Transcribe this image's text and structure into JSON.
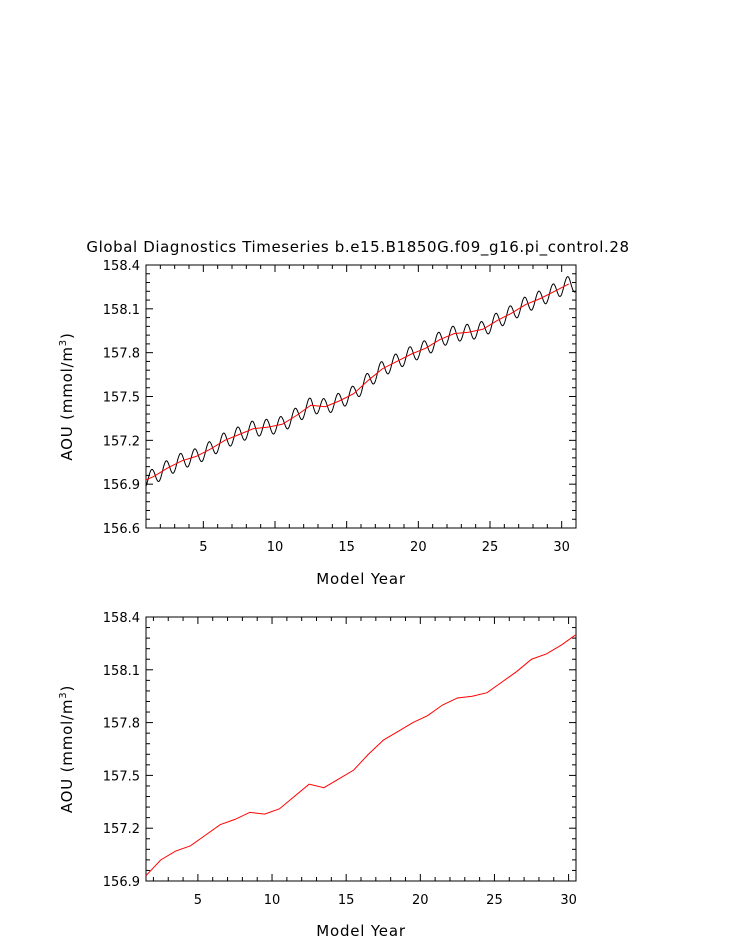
{
  "title": "Global Diagnostics Timeseries b.e15.B1850G.f09_g16.pi_control.28",
  "colors": {
    "monthly": "#000000",
    "annual": "#ff0000",
    "axes": "#000000"
  },
  "chart_data": [
    {
      "type": "line",
      "xlabel": "Model Year",
      "ylabel_main": "AOU (mmol/m",
      "ylabel_sup": "3",
      "ylabel_tail": ")",
      "xlim": [
        1,
        31
      ],
      "ylim": [
        156.6,
        158.4
      ],
      "xticks": [
        5,
        10,
        15,
        20,
        25,
        30
      ],
      "xtick_labels": [
        "5",
        "10",
        "15",
        "20",
        "25",
        "30"
      ],
      "yticks": [
        156.6,
        156.9,
        157.2,
        157.5,
        157.8,
        158.1,
        158.4
      ],
      "ytick_labels": [
        "156.6",
        "156.9",
        "157.2",
        "157.5",
        "157.8",
        "158.1",
        "158.4"
      ],
      "series": [
        {
          "style": "monthly",
          "seasonal_amplitude": 0.055,
          "x_start": 1.0,
          "x_end": 31.0,
          "points_per_year": 12
        },
        {
          "style": "annual",
          "x": [
            1.0,
            1.5,
            2.5,
            3.5,
            4.5,
            5.5,
            6.5,
            7.5,
            8.5,
            9.5,
            10.5,
            11.5,
            12.5,
            13.5,
            14.5,
            15.5,
            16.5,
            17.5,
            18.5,
            19.5,
            20.5,
            21.5,
            22.5,
            23.5,
            24.5,
            25.5,
            26.5,
            27.5,
            28.5,
            29.5,
            30.5
          ],
          "values": [
            156.93,
            156.95,
            157.01,
            157.06,
            157.09,
            157.14,
            157.2,
            157.24,
            157.28,
            157.29,
            157.31,
            157.37,
            157.44,
            157.43,
            157.47,
            157.52,
            157.61,
            157.69,
            157.74,
            157.79,
            157.83,
            157.89,
            157.93,
            157.94,
            157.96,
            158.02,
            158.07,
            158.13,
            158.17,
            158.22,
            158.27
          ]
        }
      ]
    },
    {
      "type": "line",
      "xlabel": "Model Year",
      "ylabel_main": "AOU (mmol/m",
      "ylabel_sup": "3",
      "ylabel_tail": ")",
      "xlim": [
        1.5,
        30.5
      ],
      "ylim": [
        156.9,
        158.4
      ],
      "xticks": [
        5,
        10,
        15,
        20,
        25,
        30
      ],
      "xtick_labels": [
        "5",
        "10",
        "15",
        "20",
        "25",
        "30"
      ],
      "yticks": [
        156.9,
        157.2,
        157.5,
        157.8,
        158.1,
        158.4
      ],
      "ytick_labels": [
        "156.9",
        "157.2",
        "157.5",
        "157.8",
        "158.1",
        "158.4"
      ],
      "series": [
        {
          "style": "annual",
          "x": [
            1.5,
            2.5,
            3.5,
            4.5,
            5.5,
            6.5,
            7.5,
            8.5,
            9.5,
            10.5,
            11.5,
            12.5,
            13.5,
            14.5,
            15.5,
            16.5,
            17.5,
            18.5,
            19.5,
            20.5,
            21.5,
            22.5,
            23.5,
            24.5,
            25.5,
            26.5,
            27.5,
            28.5,
            29.5,
            30.5
          ],
          "values": [
            156.93,
            157.02,
            157.07,
            157.1,
            157.16,
            157.22,
            157.25,
            157.29,
            157.28,
            157.31,
            157.38,
            157.45,
            157.43,
            157.48,
            157.53,
            157.62,
            157.7,
            157.75,
            157.8,
            157.84,
            157.9,
            157.94,
            157.95,
            157.97,
            158.03,
            158.09,
            158.16,
            158.19,
            158.24,
            158.3
          ]
        }
      ]
    }
  ]
}
